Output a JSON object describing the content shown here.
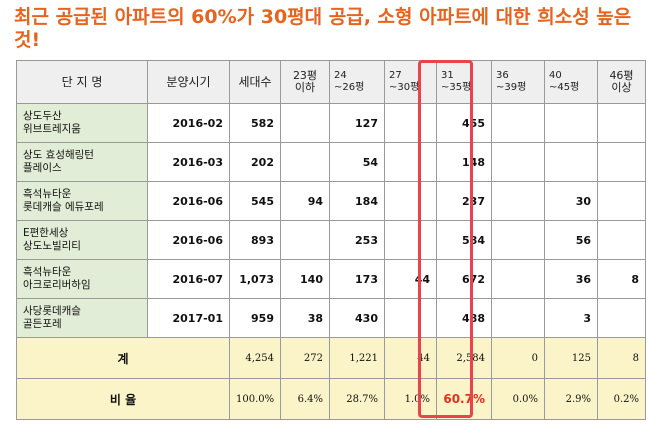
{
  "title": "최근 공급된 아파트의 60%가 30평대 공급, 소형 아파트에 대한 희소성 높은 것!",
  "columns": [
    {
      "l1": "단 지 명",
      "l2": ""
    },
    {
      "l1": "분양시기",
      "l2": ""
    },
    {
      "l1": "세대수",
      "l2": ""
    },
    {
      "l1": "23평",
      "l2": "이하"
    },
    {
      "l1": "24",
      "l2": "~26평"
    },
    {
      "l1": "27",
      "l2": "~30평"
    },
    {
      "l1": "31",
      "l2": "~35평"
    },
    {
      "l1": "36",
      "l2": "~39평"
    },
    {
      "l1": "40",
      "l2": "~45평"
    },
    {
      "l1": "46평 이상",
      "l2": ""
    }
  ],
  "rows": [
    {
      "name1": "상도두산",
      "name2": "위브트레지움",
      "date": "2016-02",
      "units": "582",
      "c23": "",
      "c24": "127",
      "c27": "",
      "c31": "455",
      "c36": "",
      "c40": "",
      "c46": ""
    },
    {
      "name1": "상도 효성해링턴",
      "name2": "플레이스",
      "date": "2016-03",
      "units": "202",
      "c23": "",
      "c24": "54",
      "c27": "",
      "c31": "148",
      "c36": "",
      "c40": "",
      "c46": ""
    },
    {
      "name1": "흑석뉴타운",
      "name2": "롯데캐슬 에듀포레",
      "date": "2016-06",
      "units": "545",
      "c23": "94",
      "c24": "184",
      "c27": "",
      "c31": "237",
      "c36": "",
      "c40": "30",
      "c46": ""
    },
    {
      "name1": "E편한세상",
      "name2": "상도노빌리티",
      "date": "2016-06",
      "units": "893",
      "c23": "",
      "c24": "253",
      "c27": "",
      "c31": "584",
      "c36": "",
      "c40": "56",
      "c46": ""
    },
    {
      "name1": "흑석뉴타운",
      "name2": "아크로리버하임",
      "date": "2016-07",
      "units": "1,073",
      "c23": "140",
      "c24": "173",
      "c27": "44",
      "c31": "672",
      "c36": "",
      "c40": "36",
      "c46": "8"
    },
    {
      "name1": "사당롯데캐슬",
      "name2": "골든포레",
      "date": "2017-01",
      "units": "959",
      "c23": "38",
      "c24": "430",
      "c27": "",
      "c31": "488",
      "c36": "",
      "c40": "3",
      "c46": ""
    }
  ],
  "total": {
    "label": "계",
    "units": "4,254",
    "c23": "272",
    "c24": "1,221",
    "c27": "44",
    "c31": "2,584",
    "c36": "0",
    "c40": "125",
    "c46": "8"
  },
  "ratio": {
    "label": "비 율",
    "units": "100.0%",
    "c23": "6.4%",
    "c24": "28.7%",
    "c27": "1.0%",
    "c31": "60.7%",
    "c36": "0.0%",
    "c40": "2.9%",
    "c46": "0.2%"
  },
  "colors": {
    "title": "#e8641e",
    "name_bg": "#e2edd7",
    "sum_bg": "#fbf4c8",
    "highlight": "#e8444a"
  }
}
